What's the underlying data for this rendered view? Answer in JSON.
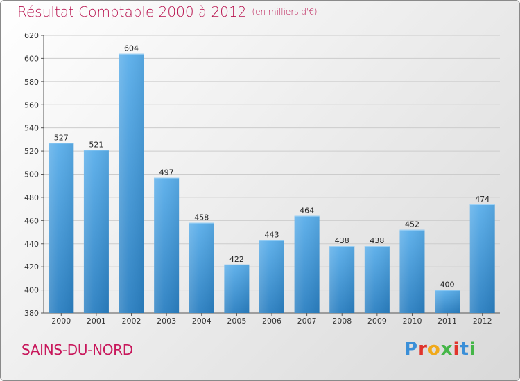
{
  "header": {
    "title": "Résultat Comptable 2000 à 2012",
    "subtitle": "(en milliers d'€)"
  },
  "town": "SAINS-DU-NORD",
  "brand": {
    "text": "Proxiti",
    "colors": [
      "#3a8fd8",
      "#e0342c",
      "#f0a91b",
      "#45b648",
      "#e0342c",
      "#3a8fd8",
      "#45b648"
    ]
  },
  "colors": {
    "bar_top": "#5aaeea",
    "bar_bottom": "#2a7fc1",
    "title": "#b8124e",
    "grid": "#cccccc"
  },
  "chart_data": {
    "type": "bar",
    "title": "Résultat Comptable 2000 à 2012",
    "subtitle": "(en milliers d'€)",
    "xlabel": "",
    "ylabel": "",
    "categories": [
      "2000",
      "2001",
      "2002",
      "2003",
      "2004",
      "2005",
      "2006",
      "2007",
      "2008",
      "2009",
      "2010",
      "2011",
      "2012"
    ],
    "values": [
      527,
      521,
      604,
      497,
      458,
      422,
      443,
      464,
      438,
      438,
      452,
      400,
      474
    ],
    "ylim": [
      380,
      620
    ],
    "yticks": [
      380,
      400,
      420,
      440,
      460,
      480,
      500,
      520,
      540,
      560,
      580,
      600,
      620
    ],
    "grid": true
  }
}
